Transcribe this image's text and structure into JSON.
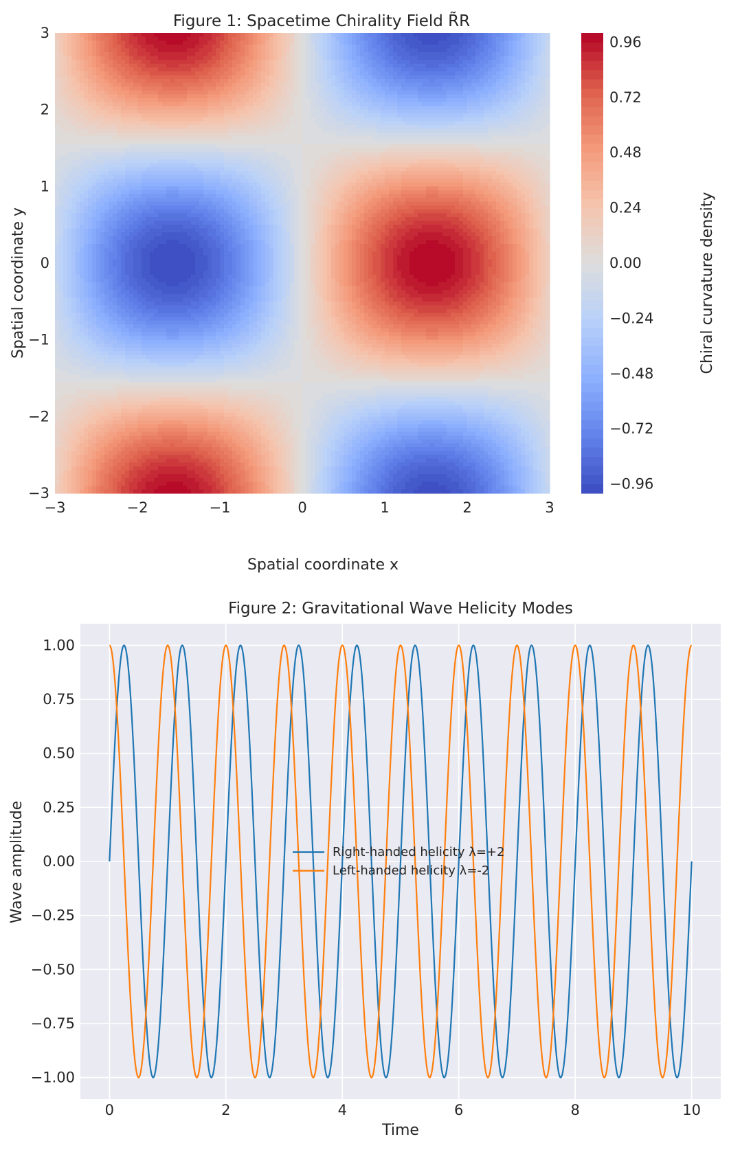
{
  "chart_data": [
    {
      "type": "heatmap",
      "title": "Figure 1: Spacetime Chirality Field  R̃R",
      "xlabel": "Spatial coordinate x",
      "ylabel": "Spatial coordinate y",
      "xlim": [
        -3,
        3
      ],
      "ylim": [
        -3,
        3
      ],
      "x_ticks": [
        -3,
        -2,
        -1,
        0,
        1,
        2,
        3
      ],
      "x_tick_labels": [
        "−3",
        "−2",
        "−1",
        "0",
        "1",
        "2",
        "3"
      ],
      "y_ticks": [
        3,
        2,
        1,
        0,
        -1,
        -2,
        -3
      ],
      "y_tick_labels": [
        "3",
        "2",
        "1",
        "0",
        "−1",
        "−2",
        "−3"
      ],
      "field": "sin(x) * cos(y)",
      "colormap": "coolwarm",
      "levels": 50,
      "grid": false,
      "colorbar": {
        "label": "Chiral curvature density",
        "range": [
          -1,
          1
        ],
        "ticks": [
          0.96,
          0.72,
          0.48,
          0.24,
          0.0,
          -0.24,
          -0.48,
          -0.72,
          -0.96
        ],
        "tick_labels": [
          "0.96",
          "0.72",
          "0.48",
          "0.24",
          "0.00",
          "−0.24",
          "−0.48",
          "−0.72",
          "−0.96"
        ]
      }
    },
    {
      "type": "line",
      "title": "Figure 2: Gravitational Wave Helicity Modes",
      "xlabel": "Time",
      "ylabel": "Wave amplitude",
      "xlim": [
        -0.5,
        10.5
      ],
      "ylim": [
        -1.1,
        1.1
      ],
      "x_ticks": [
        0,
        2,
        4,
        6,
        8,
        10
      ],
      "x_tick_labels": [
        "0",
        "2",
        "4",
        "6",
        "8",
        "10"
      ],
      "y_ticks": [
        1.0,
        0.75,
        0.5,
        0.25,
        0.0,
        -0.25,
        -0.5,
        -0.75,
        -1.0
      ],
      "y_tick_labels": [
        "1.00",
        "0.75",
        "0.50",
        "0.25",
        "0.00",
        "−0.25",
        "−0.50",
        "−0.75",
        "−1.00"
      ],
      "grid": true,
      "legend_position": "center",
      "x_range": [
        0,
        10
      ],
      "series": [
        {
          "name": "Right-handed helicity λ=+2",
          "function": "sin(2*pi*t)",
          "color": "#1f77b4"
        },
        {
          "name": "Left-handed helicity λ=-2",
          "function": "cos(2*pi*t)",
          "color": "#ff7f0e"
        }
      ]
    }
  ]
}
